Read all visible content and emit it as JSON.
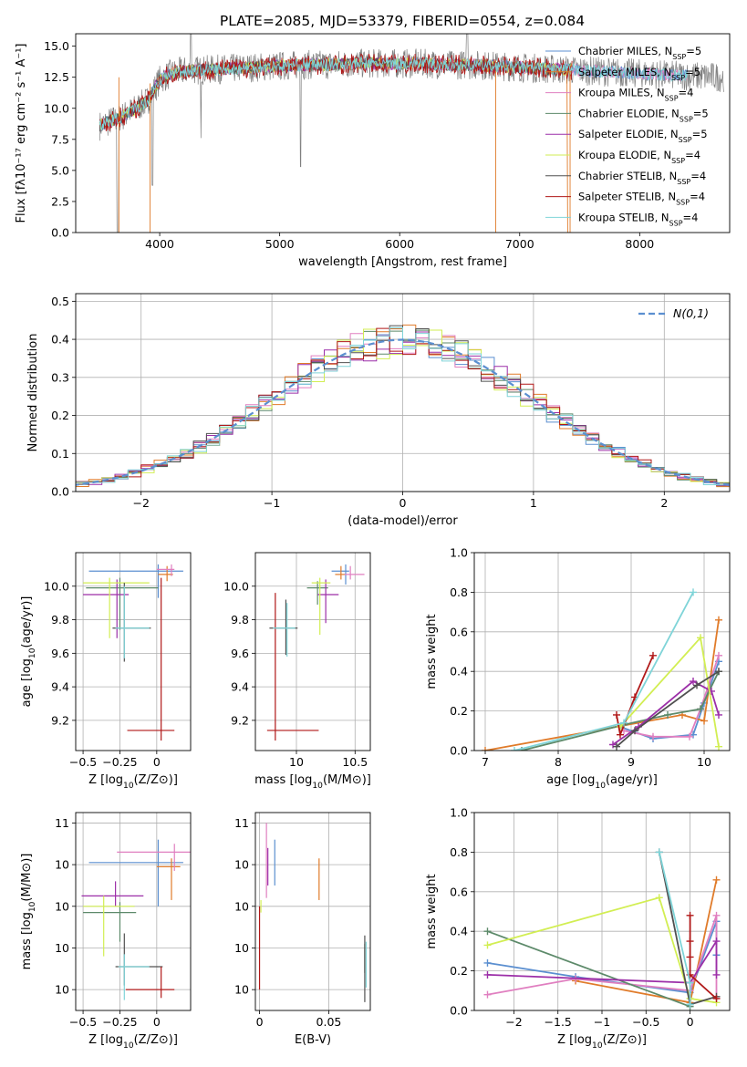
{
  "figure_title": "PLATE=2085, MJD=53379, FIBERID=0554, z=0.084",
  "colors": {
    "grid": "#b0b0b0",
    "normal_curve": "#5b8fd0",
    "models": [
      "#5b8fd0",
      "#e07b2a",
      "#e07fc0",
      "#5d8a6a",
      "#9c2fa8",
      "#d2ee53",
      "#505050",
      "#b01818",
      "#7fd4d8"
    ],
    "data_spectrum": "#7f7f7f"
  },
  "chart_data": [
    {
      "id": "spectrum",
      "type": "line",
      "title": "PLATE=2085, MJD=53379, FIBERID=0554, z=0.084",
      "xlabel": "wavelength [Angstrom, rest frame]",
      "ylabel": "Flux [fλ10⁻¹⁷ erg cm⁻² s⁻¹ A⁻¹]",
      "xlim": [
        3300,
        8750
      ],
      "ylim": [
        0,
        16
      ],
      "xticks": [
        4000,
        5000,
        6000,
        7000,
        8000
      ],
      "yticks": [
        0.0,
        2.5,
        5.0,
        7.5,
        10.0,
        12.5,
        15.0
      ],
      "legend_position": "top-right",
      "legend": [
        "Chabrier MILES, N_SSP=5",
        "Salpeter MILES, N_SSP=5",
        "Kroupa MILES, N_SSP=4",
        "Chabrier ELODIE, N_SSP=5",
        "Salpeter ELODIE, N_SSP=5",
        "Kroupa ELODIE, N_SSP=4",
        "Chabrier STELIB, N_SSP=4",
        "Salpeter STELIB, N_SSP=4",
        "Kroupa STELIB, N_SSP=4"
      ],
      "continuum": {
        "x": [
          3500,
          3600,
          3700,
          3800,
          3900,
          4000,
          4100,
          4200,
          4400,
          4600,
          4800,
          5000,
          5200,
          5400,
          5600,
          5800,
          6000,
          6200,
          6400,
          6600,
          6800,
          7000,
          7200,
          7400,
          7600,
          7800,
          8000,
          8200,
          8400,
          8700
        ],
        "y": [
          8.6,
          9.0,
          9.4,
          10.0,
          10.6,
          12.3,
          12.8,
          13.0,
          13.1,
          13.2,
          13.3,
          13.4,
          13.5,
          13.5,
          13.6,
          13.6,
          13.6,
          13.6,
          13.5,
          13.5,
          13.4,
          13.3,
          13.2,
          13.1,
          13.0,
          12.9,
          12.8,
          12.7,
          12.6,
          12.5
        ]
      }
    },
    {
      "id": "residuals",
      "type": "histogram",
      "xlabel": "(data-model)/error",
      "ylabel": "Normed distribution",
      "xlim": [
        -2.5,
        2.5
      ],
      "ylim": [
        0,
        0.52
      ],
      "xticks": [
        -2,
        -1,
        0,
        1,
        2
      ],
      "yticks": [
        0.0,
        0.1,
        0.2,
        0.3,
        0.4,
        0.5
      ],
      "legend_position": "top-right",
      "legend": [
        "N(0,1)"
      ],
      "normal": {
        "mu": 0,
        "sigma": 1
      }
    },
    {
      "id": "age_vs_Z",
      "type": "errorbar",
      "xlabel": "Z [log10(Z/Z⊙)]",
      "ylabel": "age  [log10(age/yr)]",
      "xlim": [
        -0.55,
        0.23
      ],
      "ylim": [
        9.02,
        10.2
      ],
      "xticks": [
        -0.5,
        -0.25,
        0.0
      ],
      "yticks": [
        9.2,
        9.4,
        9.6,
        9.8,
        10.0
      ],
      "points": [
        {
          "x": 0.01,
          "y": 10.09,
          "xerr": [
            0.47,
            0.17
          ],
          "yerr": [
            0.16,
            0.04
          ]
        },
        {
          "x": 0.07,
          "y": 10.07,
          "xerr": [
            0.06,
            0.04
          ],
          "yerr": [
            0.04,
            0.05
          ]
        },
        {
          "x": 0.1,
          "y": 10.1,
          "xerr": [
            0.1,
            0.02
          ],
          "yerr": [
            0.04,
            0.03
          ]
        },
        {
          "x": -0.25,
          "y": 9.99,
          "xerr": [
            0.23,
            0.26
          ],
          "yerr": [
            0.25,
            0.06
          ]
        },
        {
          "x": -0.27,
          "y": 9.95,
          "xerr": [
            0.23,
            0.08
          ],
          "yerr": [
            0.26,
            0.09
          ]
        },
        {
          "x": -0.32,
          "y": 10.02,
          "xerr": [
            0.18,
            0.27
          ],
          "yerr": [
            0.33,
            0.03
          ]
        },
        {
          "x": -0.22,
          "y": 9.75,
          "xerr": [
            0.08,
            0.18
          ],
          "yerr": [
            0.2,
            0.27
          ]
        },
        {
          "x": 0.03,
          "y": 9.14,
          "xerr": [
            0.23,
            0.09
          ],
          "yerr": [
            0.06,
            0.91
          ]
        },
        {
          "x": -0.22,
          "y": 9.75,
          "xerr": [
            0.06,
            0.17
          ],
          "yerr": [
            0.18,
            0.25
          ]
        }
      ]
    },
    {
      "id": "age_vs_mass",
      "type": "errorbar",
      "xlabel": "mass [log10(M/M⊙)]",
      "ylabel": "",
      "xlim": [
        9.65,
        10.63
      ],
      "ylim": [
        9.02,
        10.2
      ],
      "xticks": [
        10.0,
        10.5
      ],
      "yticks": [
        9.2,
        9.4,
        9.6,
        9.8,
        10.0
      ],
      "points": [
        {
          "x": 10.42,
          "y": 10.09,
          "xerr": [
            0.12,
            0.03
          ],
          "yerr": [
            0.08,
            0.04
          ]
        },
        {
          "x": 10.38,
          "y": 10.07,
          "xerr": [
            0.05,
            0.04
          ],
          "yerr": [
            0.03,
            0.05
          ]
        },
        {
          "x": 10.46,
          "y": 10.07,
          "xerr": [
            0.05,
            0.12
          ],
          "yerr": [
            0.03,
            0.05
          ]
        },
        {
          "x": 10.18,
          "y": 9.99,
          "xerr": [
            0.09,
            0.09
          ],
          "yerr": [
            0.1,
            0.04
          ]
        },
        {
          "x": 10.25,
          "y": 9.95,
          "xerr": [
            0.07,
            0.11
          ],
          "yerr": [
            0.17,
            0.09
          ]
        },
        {
          "x": 10.2,
          "y": 10.02,
          "xerr": [
            0.07,
            0.09
          ],
          "yerr": [
            0.31,
            0.03
          ]
        },
        {
          "x": 9.91,
          "y": 9.75,
          "xerr": [
            0.14,
            0.1
          ],
          "yerr": [
            0.16,
            0.17
          ]
        },
        {
          "x": 9.82,
          "y": 9.14,
          "xerr": [
            0.07,
            0.37
          ],
          "yerr": [
            0.06,
            0.82
          ]
        },
        {
          "x": 9.92,
          "y": 9.75,
          "xerr": [
            0.12,
            0.07
          ],
          "yerr": [
            0.17,
            0.15
          ]
        }
      ]
    },
    {
      "id": "weight_vs_age",
      "type": "line",
      "xlabel": "age  [log10(age/yr)]",
      "ylabel": "mass weight",
      "xlim": [
        6.85,
        10.35
      ],
      "ylim": [
        0,
        1
      ],
      "xticks": [
        7,
        8,
        9,
        10
      ],
      "yticks": [
        0.0,
        0.2,
        0.4,
        0.6,
        0.8,
        1.0
      ],
      "series": [
        {
          "x": [
            8.85,
            9.3,
            9.85,
            10.0,
            10.2
          ],
          "y": [
            0.12,
            0.06,
            0.08,
            0.24,
            0.45
          ]
        },
        {
          "x": [
            7.0,
            9.7,
            10.0,
            10.2
          ],
          "y": [
            0.0,
            0.18,
            0.15,
            0.66
          ]
        },
        {
          "x": [
            8.9,
            9.3,
            9.8,
            9.95,
            10.2
          ],
          "y": [
            0.1,
            0.07,
            0.07,
            0.21,
            0.48
          ]
        },
        {
          "x": [
            7.5,
            8.9,
            9.5,
            9.95,
            10.2
          ],
          "y": [
            0.0,
            0.13,
            0.18,
            0.21,
            0.4
          ]
        },
        {
          "x": [
            8.75,
            9.1,
            9.85,
            10.1,
            10.2
          ],
          "y": [
            0.03,
            0.12,
            0.35,
            0.3,
            0.18
          ]
        },
        {
          "x": [
            8.85,
            9.95,
            10.2
          ],
          "y": [
            0.12,
            0.57,
            0.02
          ]
        },
        {
          "x": [
            8.8,
            9.05,
            9.9,
            10.2
          ],
          "y": [
            0.02,
            0.1,
            0.33,
            0.4
          ]
        },
        {
          "x": [
            8.8,
            8.85,
            9.05,
            9.3
          ],
          "y": [
            0.18,
            0.08,
            0.27,
            0.48
          ]
        },
        {
          "x": [
            7.4,
            8.9,
            9.85
          ],
          "y": [
            0.0,
            0.14,
            0.8
          ]
        }
      ]
    },
    {
      "id": "mass_vs_Z",
      "type": "errorbar",
      "xlabel": "Z [log10(Z/Z⊙)]",
      "ylabel": "mass [log10(M/M⊙)]",
      "xlim": [
        -0.55,
        0.23
      ],
      "ylim": [
        9.7,
        10.65
      ],
      "xticks": [
        -0.5,
        -0.25,
        0.0
      ],
      "yticks": [
        9.8,
        10.0,
        10.2,
        10.4,
        10.6
      ],
      "points": [
        {
          "x": 0.01,
          "y": 10.41,
          "xerr": [
            0.47,
            0.17
          ],
          "yerr": [
            0.21,
            0.11
          ]
        },
        {
          "x": 0.1,
          "y": 10.39,
          "xerr": [
            0.1,
            0.06
          ],
          "yerr": [
            0.16,
            0.04
          ]
        },
        {
          "x": 0.12,
          "y": 10.46,
          "xerr": [
            0.39,
            0.12
          ],
          "yerr": [
            0.09,
            0.04
          ]
        },
        {
          "x": -0.25,
          "y": 10.17,
          "xerr": [
            0.25,
            0.11
          ],
          "yerr": [
            0.14,
            0.05
          ]
        },
        {
          "x": -0.28,
          "y": 10.25,
          "xerr": [
            0.23,
            0.19
          ],
          "yerr": [
            0.05,
            0.07
          ]
        },
        {
          "x": -0.36,
          "y": 10.2,
          "xerr": [
            0.14,
            0.21
          ],
          "yerr": [
            0.24,
            0.05
          ]
        },
        {
          "x": -0.22,
          "y": 9.91,
          "xerr": [
            0.06,
            0.26
          ],
          "yerr": [
            0.09,
            0.16
          ]
        },
        {
          "x": 0.03,
          "y": 9.8,
          "xerr": [
            0.24,
            0.09
          ],
          "yerr": [
            0.04,
            0.11
          ]
        },
        {
          "x": -0.22,
          "y": 9.91,
          "xerr": [
            0.04,
            0.17
          ],
          "yerr": [
            0.16,
            0.06
          ]
        }
      ]
    },
    {
      "id": "mass_vs_ebv",
      "type": "errorbar",
      "xlabel": "E(B-V)",
      "ylabel": "",
      "xlim": [
        -0.003,
        0.08
      ],
      "ylim": [
        9.7,
        10.65
      ],
      "xticks": [
        0.0,
        0.05
      ],
      "yticks": [
        9.8,
        10.0,
        10.2,
        10.4,
        10.6
      ],
      "points": [
        {
          "x": 0.011,
          "y": 10.41,
          "xerr": [
            0,
            0
          ],
          "yerr": [
            0.11,
            0.11
          ]
        },
        {
          "x": 0.043,
          "y": 10.33,
          "xerr": [
            0,
            0
          ],
          "yerr": [
            0.1,
            0.1
          ]
        },
        {
          "x": 0.005,
          "y": 10.44,
          "xerr": [
            0,
            0
          ],
          "yerr": [
            0.2,
            0.16
          ]
        },
        {
          "x": 0.076,
          "y": 9.95,
          "xerr": [
            0,
            0
          ],
          "yerr": [
            0.07,
            0.07
          ]
        },
        {
          "x": 0.006,
          "y": 10.38,
          "xerr": [
            0,
            0
          ],
          "yerr": [
            0.08,
            0.1
          ]
        },
        {
          "x": 0.001,
          "y": 10.2,
          "xerr": [
            0,
            0
          ],
          "yerr": [
            0.03,
            0.03
          ]
        },
        {
          "x": 0.076,
          "y": 9.9,
          "xerr": [
            0,
            0
          ],
          "yerr": [
            0.16,
            0.16
          ]
        },
        {
          "x": 0.0,
          "y": 9.95,
          "xerr": [
            0,
            0
          ],
          "yerr": [
            0.15,
            0.25
          ]
        },
        {
          "x": 0.077,
          "y": 9.92,
          "xerr": [
            0,
            0
          ],
          "yerr": [
            0.11,
            0.11
          ]
        }
      ]
    },
    {
      "id": "weight_vs_Z",
      "type": "line",
      "xlabel": "Z [log10(Z/Z⊙)]",
      "ylabel": "mass weight",
      "xlim": [
        -2.45,
        0.45
      ],
      "ylim": [
        0,
        1
      ],
      "xticks": [
        -2.0,
        -1.5,
        -1.0,
        -0.5,
        0.0
      ],
      "yticks": [
        0.0,
        0.2,
        0.4,
        0.6,
        0.8,
        1.0
      ],
      "series": [
        {
          "x": [
            -2.3,
            -1.3,
            0.0,
            0.3,
            0.3
          ],
          "y": [
            0.24,
            0.17,
            0.09,
            0.45,
            0.28
          ]
        },
        {
          "x": [
            -1.3,
            0.0,
            0.3
          ],
          "y": [
            0.15,
            0.04,
            0.66
          ]
        },
        {
          "x": [
            -2.3,
            -1.3,
            0.0,
            0.3,
            0.3
          ],
          "y": [
            0.08,
            0.16,
            0.1,
            0.48,
            0.06
          ]
        },
        {
          "x": [
            -2.3,
            0.0
          ],
          "y": [
            0.4,
            0.02
          ]
        },
        {
          "x": [
            -2.3,
            0.0,
            0.3,
            0.3
          ],
          "y": [
            0.18,
            0.14,
            0.35,
            0.18
          ]
        },
        {
          "x": [
            -2.3,
            -0.35,
            0.0,
            0.3
          ],
          "y": [
            0.33,
            0.57,
            0.06,
            0.04
          ]
        },
        {
          "x": [
            -0.35,
            0.0,
            0.3
          ],
          "y": [
            0.8,
            0.03,
            0.07
          ]
        },
        {
          "x": [
            0.0,
            0.0,
            0.0,
            0.0,
            0.3
          ],
          "y": [
            0.48,
            0.35,
            0.27,
            0.18,
            0.06
          ]
        },
        {
          "x": [
            -0.35,
            0.0,
            0.0
          ],
          "y": [
            0.8,
            0.14,
            0.03
          ]
        }
      ]
    }
  ]
}
